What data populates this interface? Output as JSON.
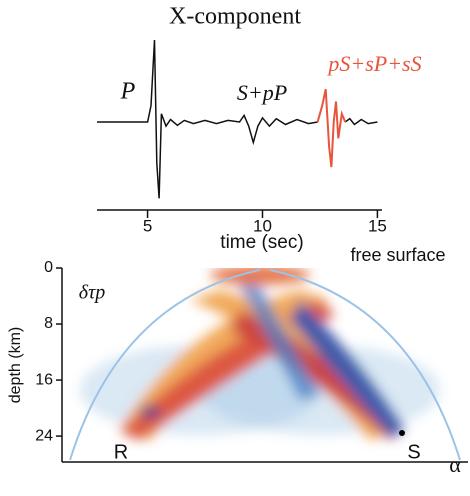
{
  "chart_data": [
    {
      "type": "line",
      "title": "X-component",
      "xlabel": "time (sec)",
      "xlim": [
        2.8,
        15.2
      ],
      "xticks": [
        5,
        10,
        15
      ],
      "ylim": [
        -1,
        1
      ],
      "annotations": [
        "P",
        "S+pP",
        "pS+sP+sS"
      ],
      "x": [
        2.8,
        5.0,
        5.15,
        5.3,
        5.4,
        5.5,
        5.6,
        5.8,
        6.0,
        6.3,
        6.6,
        7.0,
        7.5,
        8.0,
        8.5,
        9.0,
        9.2,
        9.4,
        9.6,
        9.8,
        10.0,
        10.3,
        10.6,
        11.0,
        11.5,
        12.0,
        12.4,
        12.6,
        12.75,
        12.9,
        13.0,
        13.1,
        13.2,
        13.3,
        13.45,
        13.6,
        13.8,
        14.0,
        14.3,
        14.6,
        15.0
      ],
      "series": [
        {
          "color": "#111111",
          "values": [
            0,
            0,
            0.2,
            1.0,
            -0.5,
            -0.93,
            0.1,
            -0.05,
            0.03,
            -0.04,
            0.02,
            -0.02,
            0.02,
            -0.02,
            0.02,
            0,
            0.08,
            -0.05,
            -0.25,
            -0.05,
            0.05,
            -0.05,
            0.04,
            -0.03,
            0.03,
            -0.02,
            0,
            null,
            null,
            null,
            null,
            null,
            null,
            null,
            null,
            0,
            0.04,
            -0.03,
            0.03,
            -0.02,
            0
          ]
        },
        {
          "color": "#e8553c",
          "values": [
            null,
            null,
            null,
            null,
            null,
            null,
            null,
            null,
            null,
            null,
            null,
            null,
            null,
            null,
            null,
            null,
            null,
            null,
            null,
            null,
            null,
            null,
            null,
            null,
            null,
            null,
            0,
            0.2,
            0.4,
            -0.3,
            -0.55,
            0,
            0.25,
            -0.2,
            0.1,
            0,
            null,
            null,
            null,
            null,
            null
          ]
        }
      ]
    },
    {
      "type": "heatmap",
      "ylabel": "depth (km)",
      "ylim": [
        0,
        27.7
      ],
      "yticks": [
        0,
        8,
        16,
        24
      ],
      "annotations": [
        "free surface",
        "δτp",
        "R",
        "S",
        "α"
      ]
    }
  ]
}
